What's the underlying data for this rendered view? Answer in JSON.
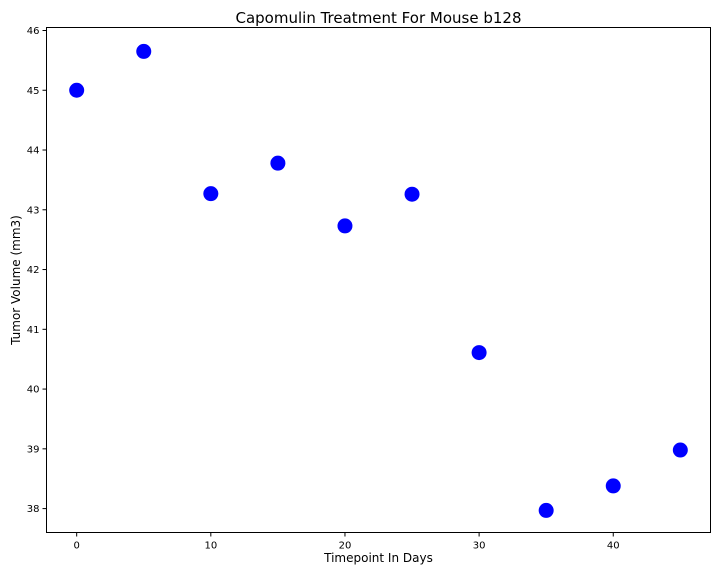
{
  "chart_data": {
    "type": "scatter",
    "title": "Capomulin Treatment For Mouse b128",
    "xlabel": "Timepoint In Days",
    "ylabel": "Tumor Volume (mm3)",
    "xlim": [
      -2.25,
      47.25
    ],
    "ylim": [
      37.6,
      46.05
    ],
    "xticks": [
      0,
      10,
      20,
      30,
      40
    ],
    "yticks": [
      38,
      39,
      40,
      41,
      42,
      43,
      44,
      45,
      46
    ],
    "grid": false,
    "marker_color": "#0000ff",
    "x": [
      0,
      5,
      10,
      15,
      20,
      25,
      30,
      35,
      40,
      45
    ],
    "y": [
      45.0,
      45.65,
      43.27,
      43.78,
      42.73,
      43.26,
      40.61,
      37.97,
      38.38,
      38.98
    ]
  }
}
